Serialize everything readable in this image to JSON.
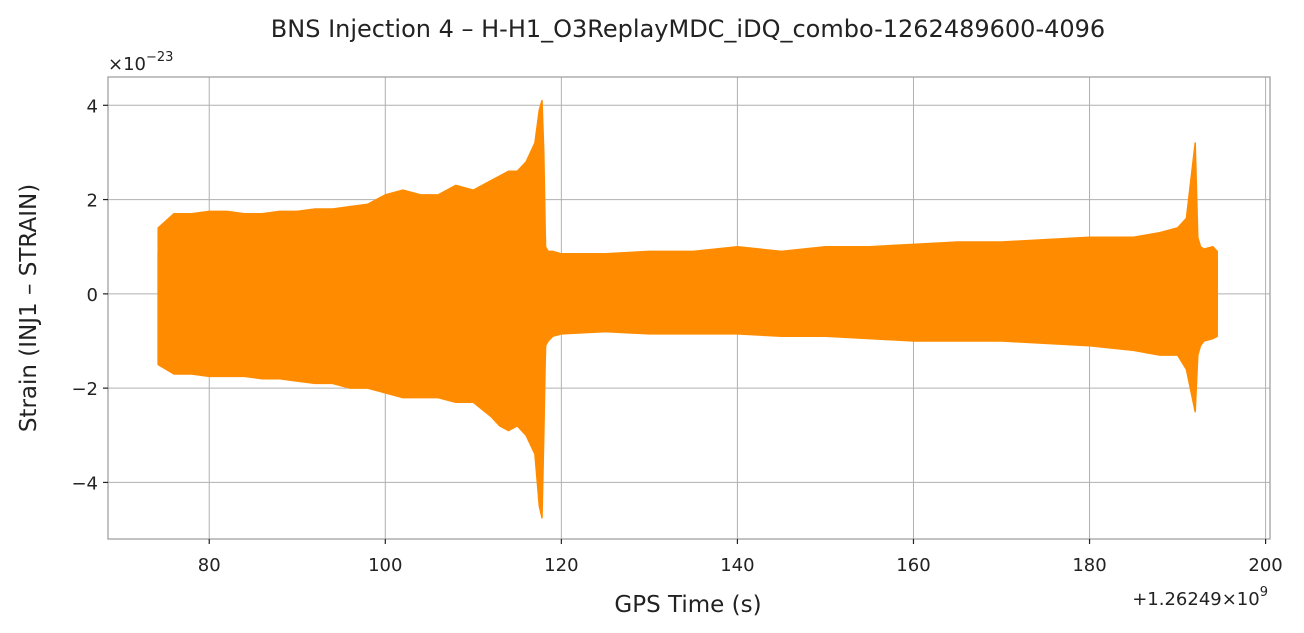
{
  "chart_data": {
    "type": "line",
    "title": "BNS Injection 4 – H-H1_O3ReplayMDC_iDQ_combo-1262489600-4096",
    "xlabel": "GPS Time (s)",
    "ylabel": "Strain (INJ1 – STRAIN)",
    "x_offset_label": "+1.26249×10",
    "x_offset_exponent": "9",
    "y_scale_label": "×10",
    "y_scale_exponent": "−23",
    "xlim": [
      68.5,
      200.5
    ],
    "ylim": [
      -5.2,
      4.6
    ],
    "x_ticks": [
      80,
      100,
      120,
      140,
      160,
      180,
      200
    ],
    "x_tick_labels": [
      "80",
      "100",
      "120",
      "140",
      "160",
      "180",
      "200"
    ],
    "y_ticks": [
      -4,
      -2,
      0,
      2,
      4
    ],
    "y_tick_labels": [
      "−4",
      "−2",
      "0",
      "2",
      "4"
    ],
    "grid": true,
    "color": "#ff8c00",
    "series": [
      {
        "style": "envelope",
        "x": [
          74.2,
          76,
          78,
          80,
          82,
          84,
          86,
          88,
          90,
          92,
          94,
          96,
          98,
          100,
          102,
          104,
          106,
          108,
          110,
          112,
          113,
          114,
          115,
          116,
          117,
          117.5,
          117.8,
          118,
          118.2,
          118.5,
          119,
          120,
          125,
          130,
          135,
          140,
          145,
          150,
          155,
          160,
          165,
          170,
          175,
          180,
          185,
          188,
          190,
          191,
          192,
          192.3,
          192.6,
          193,
          194,
          194.5
        ],
        "upper": [
          1.4,
          1.7,
          1.7,
          1.75,
          1.75,
          1.7,
          1.7,
          1.75,
          1.75,
          1.8,
          1.8,
          1.85,
          1.9,
          2.1,
          2.2,
          2.1,
          2.1,
          2.3,
          2.2,
          2.4,
          2.5,
          2.6,
          2.6,
          2.8,
          3.2,
          3.9,
          4.1,
          3.0,
          1.0,
          0.9,
          0.9,
          0.85,
          0.85,
          0.9,
          0.9,
          1.0,
          0.9,
          1.0,
          1.0,
          1.05,
          1.1,
          1.1,
          1.15,
          1.2,
          1.2,
          1.3,
          1.4,
          1.6,
          3.2,
          1.2,
          1.0,
          0.95,
          1.0,
          0.9
        ],
        "lower": [
          -1.5,
          -1.7,
          -1.7,
          -1.75,
          -1.75,
          -1.75,
          -1.8,
          -1.8,
          -1.85,
          -1.9,
          -1.9,
          -2.0,
          -2.0,
          -2.1,
          -2.2,
          -2.2,
          -2.2,
          -2.3,
          -2.3,
          -2.6,
          -2.8,
          -2.9,
          -2.8,
          -3.0,
          -3.4,
          -4.5,
          -4.75,
          -3.0,
          -1.1,
          -1.0,
          -0.9,
          -0.85,
          -0.8,
          -0.85,
          -0.85,
          -0.85,
          -0.9,
          -0.9,
          -0.95,
          -1.0,
          -1.0,
          -1.0,
          -1.05,
          -1.1,
          -1.2,
          -1.3,
          -1.3,
          -1.6,
          -2.5,
          -1.3,
          -1.1,
          -1.0,
          -0.95,
          -0.9
        ]
      }
    ]
  }
}
